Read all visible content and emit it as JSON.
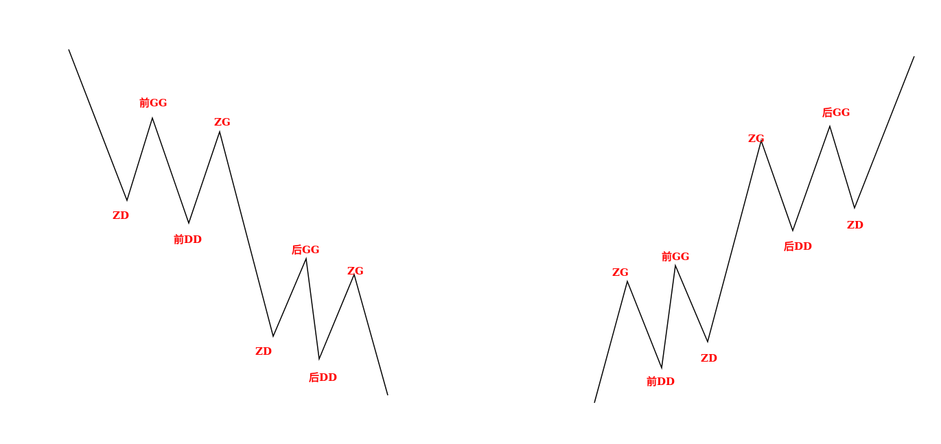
{
  "colors": {
    "background": "#ffffff",
    "line": "#000000",
    "label": "#ff0000"
  },
  "downtrend": {
    "labels": [
      {
        "key": "zd_1",
        "text": "ZD"
      },
      {
        "key": "qian_gg",
        "text": "前GG"
      },
      {
        "key": "qian_dd",
        "text": "前DD"
      },
      {
        "key": "zg_1",
        "text": "ZG"
      },
      {
        "key": "zd_2",
        "text": "ZD"
      },
      {
        "key": "hou_gg",
        "text": "后GG"
      },
      {
        "key": "hou_dd",
        "text": "后DD"
      },
      {
        "key": "zg_2",
        "text": "ZG"
      }
    ]
  },
  "uptrend": {
    "labels": [
      {
        "key": "zg_1",
        "text": "ZG"
      },
      {
        "key": "qian_dd",
        "text": "前DD"
      },
      {
        "key": "qian_gg",
        "text": "前GG"
      },
      {
        "key": "zd_1",
        "text": "ZD"
      },
      {
        "key": "zg_2",
        "text": "ZG"
      },
      {
        "key": "hou_dd",
        "text": "后DD"
      },
      {
        "key": "hou_gg",
        "text": "后GG"
      },
      {
        "key": "zd_2",
        "text": "ZD"
      }
    ]
  }
}
